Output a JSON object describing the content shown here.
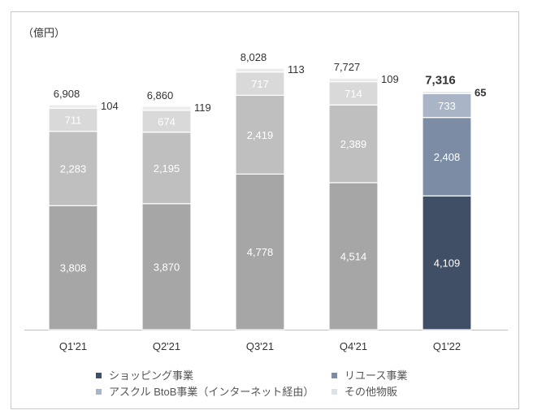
{
  "chart_data": {
    "type": "bar",
    "stacked": true,
    "unit_label": "（億円）",
    "categories": [
      "Q1'21",
      "Q2'21",
      "Q3'21",
      "Q4'21",
      "Q1'22"
    ],
    "totals": [
      "6,908",
      "6,860",
      "8,028",
      "7,727",
      "7,316"
    ],
    "series": [
      {
        "name": "ショッピング事業",
        "values": [
          3808,
          3870,
          4778,
          4514,
          4109
        ],
        "color": "#414f66",
        "color_past": "#a6a6a6"
      },
      {
        "name": "リユース事業",
        "values": [
          2283,
          2195,
          2419,
          2389,
          2408
        ],
        "color": "#7d8ca5",
        "color_past": "#bfbfbf"
      },
      {
        "name": "アスクル BtoB事業（インターネット経由）",
        "values": [
          711,
          674,
          717,
          714,
          733
        ],
        "color": "#a9b4c6",
        "color_past": "#d9d9d9"
      },
      {
        "name": "その他物販",
        "values": [
          104,
          119,
          113,
          109,
          65
        ],
        "color": "#dde1e8",
        "color_past": "#ececec"
      }
    ],
    "ylim": [
      0,
      8500
    ],
    "grid": false,
    "legend_position": "bottom",
    "highlight_category": "Q1'22"
  }
}
